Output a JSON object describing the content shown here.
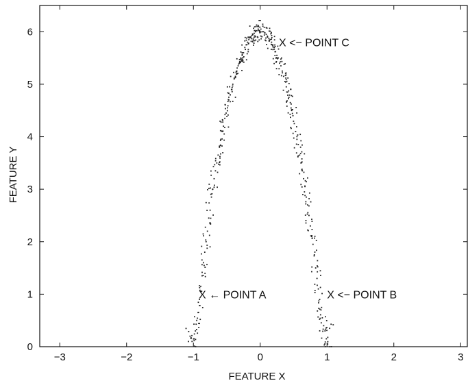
{
  "chart_data": {
    "type": "scatter",
    "title": "",
    "xlabel": "FEATURE X",
    "ylabel": "FEATURE Y",
    "xlim": [
      -3.3,
      3.1
    ],
    "ylim": [
      0,
      6.5
    ],
    "xticks": [
      -3,
      -2,
      -1,
      0,
      1,
      2,
      3
    ],
    "yticks": [
      0,
      1,
      2,
      3,
      4,
      5,
      6
    ],
    "grid": false,
    "legend": "none",
    "marker_color": "#222222",
    "series": [
      {
        "points_description": "inverted parabola y ≈ 6 − 6·x², x ∈ [−1, 1], noisy",
        "x": [
          -1.05,
          -1.02,
          -0.99,
          -0.97,
          -0.95,
          -0.93,
          -0.91,
          -0.89,
          -0.87,
          -0.85,
          -0.83,
          -0.81,
          -0.79,
          -0.77,
          -0.75,
          -0.73,
          -0.71,
          -0.69,
          -0.67,
          -0.65,
          -0.63,
          -0.61,
          -0.59,
          -0.57,
          -0.55,
          -0.53,
          -0.51,
          -0.49,
          -0.47,
          -0.45,
          -0.43,
          -0.41,
          -0.39,
          -0.37,
          -0.35,
          -0.33,
          -0.31,
          -0.29,
          -0.27,
          -0.25,
          -0.23,
          -0.21,
          -0.19,
          -0.17,
          -0.15,
          -0.13,
          -0.11,
          -0.09,
          -0.07,
          -0.05,
          -0.03,
          -0.01,
          0.01,
          0.03,
          0.05,
          0.07,
          0.09,
          0.11,
          0.13,
          0.15,
          0.17,
          0.19,
          0.21,
          0.23,
          0.25,
          0.27,
          0.29,
          0.31,
          0.33,
          0.35,
          0.37,
          0.39,
          0.41,
          0.43,
          0.45,
          0.47,
          0.49,
          0.51,
          0.53,
          0.55,
          0.57,
          0.59,
          0.61,
          0.63,
          0.65,
          0.67,
          0.69,
          0.71,
          0.73,
          0.75,
          0.77,
          0.79,
          0.81,
          0.83,
          0.85,
          0.87,
          0.89,
          0.91,
          0.93,
          0.95,
          0.97,
          0.99,
          1.01,
          1.04
        ],
        "y": [
          0.2,
          0.1,
          0.15,
          0.3,
          0.5,
          0.65,
          0.9,
          1.15,
          1.35,
          1.6,
          1.8,
          2.0,
          2.2,
          2.45,
          2.6,
          2.85,
          3.0,
          3.2,
          3.35,
          3.5,
          3.65,
          3.8,
          3.95,
          4.1,
          4.2,
          4.35,
          4.45,
          4.55,
          4.7,
          4.8,
          4.9,
          5.0,
          5.1,
          5.15,
          5.25,
          5.35,
          5.4,
          5.5,
          5.55,
          5.6,
          5.7,
          5.75,
          5.8,
          5.85,
          5.9,
          5.92,
          5.95,
          5.97,
          6.0,
          6.02,
          6.05,
          6.02,
          6.05,
          6.0,
          6.0,
          5.98,
          5.95,
          5.9,
          5.87,
          5.85,
          5.8,
          5.75,
          5.7,
          5.62,
          5.55,
          5.5,
          5.4,
          5.35,
          5.25,
          5.15,
          5.05,
          4.95,
          4.85,
          4.75,
          4.65,
          4.5,
          4.4,
          4.25,
          4.1,
          3.95,
          3.85,
          3.65,
          3.5,
          3.35,
          3.2,
          3.05,
          2.85,
          2.7,
          2.5,
          2.3,
          2.1,
          1.95,
          1.75,
          1.5,
          1.3,
          1.1,
          0.9,
          0.7,
          0.55,
          0.4,
          0.3,
          0.15,
          0.05,
          0.35
        ]
      }
    ],
    "annotations": [
      {
        "text": "X ← POINT A",
        "x": -0.92,
        "y": 1.0
      },
      {
        "text": "X <− POINT B",
        "x": 1.0,
        "y": 1.0
      },
      {
        "text": "X <− POINT C",
        "x": 0.28,
        "y": 5.8
      }
    ]
  }
}
